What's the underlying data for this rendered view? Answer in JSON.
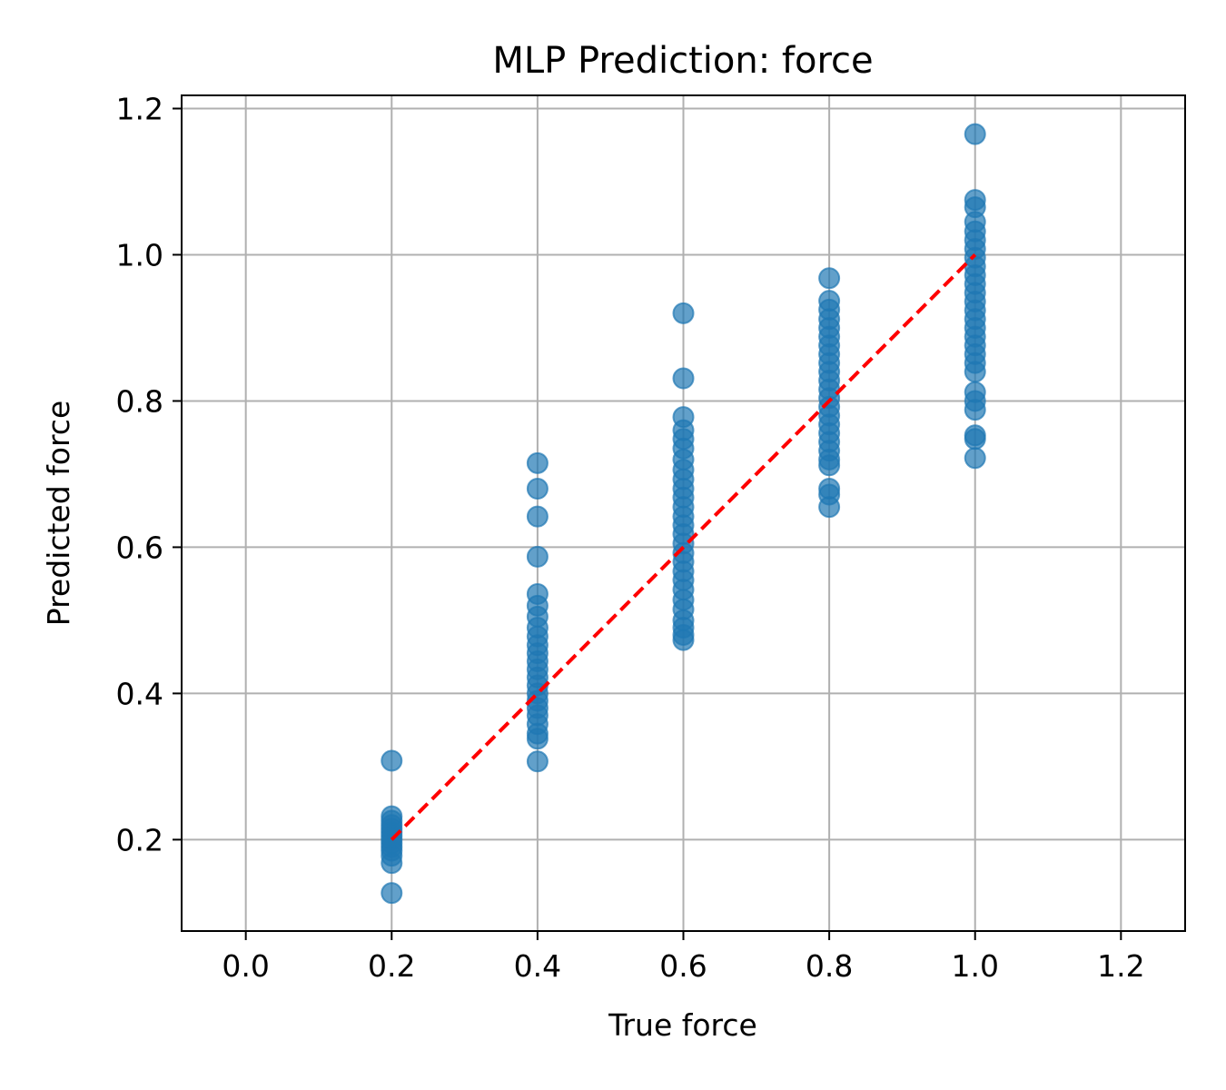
{
  "chart_data": {
    "type": "scatter",
    "title": "MLP Prediction: force",
    "xlabel": "True force",
    "ylabel": "Predicted force",
    "xlim": [
      -0.088,
      1.288
    ],
    "ylim": [
      0.075,
      1.218
    ],
    "xticks": [
      0.0,
      0.2,
      0.4,
      0.6,
      0.8,
      1.0,
      1.2
    ],
    "yticks": [
      0.2,
      0.4,
      0.6,
      0.8,
      1.0,
      1.2
    ],
    "xtick_labels": [
      "0.0",
      "0.2",
      "0.4",
      "0.6",
      "0.8",
      "1.0",
      "1.2"
    ],
    "ytick_labels": [
      "0.2",
      "0.4",
      "0.6",
      "0.8",
      "1.0",
      "1.2"
    ],
    "grid": true,
    "colors": {
      "points": "#1f77b4",
      "reference_line": "#ff0000",
      "grid": "#b0b0b0"
    },
    "reference_line": {
      "style": "dashed",
      "x": [
        0.2,
        1.0
      ],
      "y": [
        0.2,
        1.0
      ]
    },
    "series": [
      {
        "points": [
          [
            0.2,
            0.308
          ],
          [
            0.2,
            0.232
          ],
          [
            0.2,
            0.226
          ],
          [
            0.2,
            0.22
          ],
          [
            0.2,
            0.215
          ],
          [
            0.2,
            0.21
          ],
          [
            0.2,
            0.205
          ],
          [
            0.2,
            0.2
          ],
          [
            0.2,
            0.195
          ],
          [
            0.2,
            0.19
          ],
          [
            0.2,
            0.185
          ],
          [
            0.2,
            0.178
          ],
          [
            0.2,
            0.168
          ],
          [
            0.2,
            0.127
          ],
          [
            0.4,
            0.715
          ],
          [
            0.4,
            0.68
          ],
          [
            0.4,
            0.642
          ],
          [
            0.4,
            0.587
          ],
          [
            0.4,
            0.536
          ],
          [
            0.4,
            0.52
          ],
          [
            0.4,
            0.505
          ],
          [
            0.4,
            0.49
          ],
          [
            0.4,
            0.478
          ],
          [
            0.4,
            0.466
          ],
          [
            0.4,
            0.455
          ],
          [
            0.4,
            0.444
          ],
          [
            0.4,
            0.433
          ],
          [
            0.4,
            0.422
          ],
          [
            0.4,
            0.411
          ],
          [
            0.4,
            0.4
          ],
          [
            0.4,
            0.39
          ],
          [
            0.4,
            0.38
          ],
          [
            0.4,
            0.37
          ],
          [
            0.4,
            0.358
          ],
          [
            0.4,
            0.345
          ],
          [
            0.4,
            0.338
          ],
          [
            0.4,
            0.307
          ],
          [
            0.6,
            0.92
          ],
          [
            0.6,
            0.831
          ],
          [
            0.6,
            0.778
          ],
          [
            0.6,
            0.76
          ],
          [
            0.6,
            0.748
          ],
          [
            0.6,
            0.735
          ],
          [
            0.6,
            0.72
          ],
          [
            0.6,
            0.706
          ],
          [
            0.6,
            0.693
          ],
          [
            0.6,
            0.68
          ],
          [
            0.6,
            0.668
          ],
          [
            0.6,
            0.655
          ],
          [
            0.6,
            0.642
          ],
          [
            0.6,
            0.63
          ],
          [
            0.6,
            0.618
          ],
          [
            0.6,
            0.605
          ],
          [
            0.6,
            0.592
          ],
          [
            0.6,
            0.58
          ],
          [
            0.6,
            0.567
          ],
          [
            0.6,
            0.555
          ],
          [
            0.6,
            0.542
          ],
          [
            0.6,
            0.528
          ],
          [
            0.6,
            0.515
          ],
          [
            0.6,
            0.5
          ],
          [
            0.6,
            0.49
          ],
          [
            0.6,
            0.48
          ],
          [
            0.6,
            0.473
          ],
          [
            0.8,
            0.968
          ],
          [
            0.8,
            0.937
          ],
          [
            0.8,
            0.925
          ],
          [
            0.8,
            0.912
          ],
          [
            0.8,
            0.9
          ],
          [
            0.8,
            0.888
          ],
          [
            0.8,
            0.876
          ],
          [
            0.8,
            0.864
          ],
          [
            0.8,
            0.852
          ],
          [
            0.8,
            0.84
          ],
          [
            0.8,
            0.828
          ],
          [
            0.8,
            0.816
          ],
          [
            0.8,
            0.804
          ],
          [
            0.8,
            0.792
          ],
          [
            0.8,
            0.78
          ],
          [
            0.8,
            0.768
          ],
          [
            0.8,
            0.756
          ],
          [
            0.8,
            0.744
          ],
          [
            0.8,
            0.732
          ],
          [
            0.8,
            0.72
          ],
          [
            0.8,
            0.712
          ],
          [
            0.8,
            0.68
          ],
          [
            0.8,
            0.672
          ],
          [
            0.8,
            0.655
          ],
          [
            1.0,
            1.165
          ],
          [
            1.0,
            1.075
          ],
          [
            1.0,
            1.065
          ],
          [
            1.0,
            1.045
          ],
          [
            1.0,
            1.032
          ],
          [
            1.0,
            1.02
          ],
          [
            1.0,
            1.008
          ],
          [
            1.0,
            0.996
          ],
          [
            1.0,
            0.984
          ],
          [
            1.0,
            0.972
          ],
          [
            1.0,
            0.96
          ],
          [
            1.0,
            0.948
          ],
          [
            1.0,
            0.936
          ],
          [
            1.0,
            0.924
          ],
          [
            1.0,
            0.912
          ],
          [
            1.0,
            0.9
          ],
          [
            1.0,
            0.888
          ],
          [
            1.0,
            0.876
          ],
          [
            1.0,
            0.864
          ],
          [
            1.0,
            0.852
          ],
          [
            1.0,
            0.84
          ],
          [
            1.0,
            0.812
          ],
          [
            1.0,
            0.8
          ],
          [
            1.0,
            0.788
          ],
          [
            1.0,
            0.753
          ],
          [
            1.0,
            0.748
          ],
          [
            1.0,
            0.722
          ]
        ]
      }
    ]
  }
}
